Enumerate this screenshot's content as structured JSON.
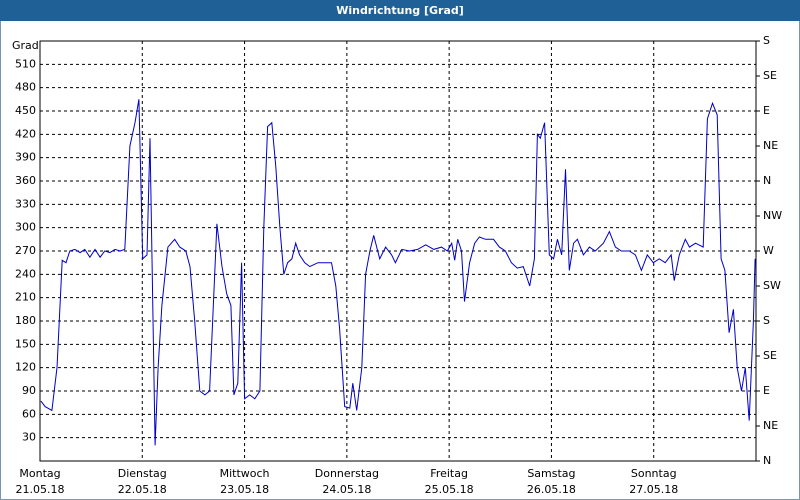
{
  "chart_data": {
    "type": "line",
    "title": "Windrichtung [Grad]",
    "y_label": "Grad",
    "x": [
      0.2,
      1.2,
      2.8,
      4.0,
      5.2,
      6.1,
      7.0,
      8.2,
      9.4,
      10.5,
      11.7,
      12.9,
      14.1,
      15.2,
      16.4,
      17.6,
      18.8,
      19.9,
      21.1,
      22.3,
      23.2,
      24.1,
      25.1,
      25.8,
      27.0,
      27.7,
      28.6,
      30.0,
      31.6,
      32.8,
      34.2,
      35.2,
      36.3,
      37.5,
      38.7,
      39.8,
      41.5,
      42.7,
      43.8,
      44.8,
      45.5,
      46.4,
      47.3,
      48.0,
      49.2,
      50.4,
      51.6,
      52.5,
      53.4,
      54.4,
      55.3,
      56.3,
      57.2,
      58.1,
      59.1,
      60.0,
      60.9,
      62.1,
      63.3,
      65.2,
      67.0,
      68.4,
      69.4,
      70.3,
      71.5,
      72.7,
      73.4,
      74.3,
      75.5,
      76.4,
      77.4,
      78.3,
      79.7,
      81.1,
      82.5,
      83.4,
      84.9,
      86.7,
      88.6,
      90.5,
      92.4,
      94.2,
      95.6,
      96.6,
      97.3,
      98.0,
      98.9,
      99.6,
      100.8,
      102.0,
      103.1,
      104.5,
      106.4,
      107.8,
      109.2,
      110.6,
      112.0,
      113.4,
      114.9,
      116.0,
      116.7,
      117.4,
      118.4,
      119.5,
      120.5,
      121.4,
      122.4,
      123.3,
      124.2,
      125.2,
      126.1,
      127.5,
      128.9,
      130.3,
      132.2,
      133.6,
      135.0,
      136.4,
      138.3,
      139.7,
      141.1,
      142.5,
      143.9,
      145.3,
      146.7,
      148.1,
      148.8,
      150.0,
      151.4,
      152.4,
      153.8,
      155.6,
      156.6,
      157.8,
      158.9,
      159.8,
      160.7,
      161.7,
      162.7,
      163.6,
      164.6,
      165.5,
      166.4,
      167.4,
      167.8
    ],
    "series": [
      {
        "name": "Windrichtung",
        "color": "#0000c8",
        "values": [
          77,
          70,
          65,
          120,
          258,
          255,
          270,
          272,
          268,
          272,
          262,
          272,
          262,
          270,
          268,
          272,
          270,
          272,
          405,
          435,
          465,
          260,
          265,
          415,
          20,
          120,
          200,
          275,
          285,
          275,
          270,
          250,
          180,
          90,
          85,
          90,
          305,
          250,
          215,
          200,
          85,
          100,
          255,
          80,
          85,
          80,
          90,
          300,
          430,
          435,
          380,
          300,
          240,
          255,
          260,
          280,
          265,
          255,
          250,
          255,
          255,
          255,
          225,
          170,
          70,
          68,
          100,
          65,
          120,
          240,
          270,
          290,
          260,
          275,
          265,
          255,
          272,
          270,
          272,
          278,
          272,
          275,
          270,
          280,
          258,
          285,
          270,
          205,
          255,
          280,
          288,
          285,
          285,
          275,
          270,
          255,
          248,
          250,
          225,
          260,
          420,
          415,
          435,
          265,
          260,
          285,
          265,
          375,
          245,
          280,
          285,
          265,
          275,
          270,
          280,
          295,
          275,
          270,
          270,
          265,
          245,
          265,
          255,
          260,
          255,
          265,
          232,
          265,
          285,
          275,
          280,
          275,
          440,
          460,
          445,
          260,
          245,
          165,
          195,
          120,
          90,
          120,
          52,
          180,
          260
        ]
      }
    ],
    "xlim": [
      0,
      168
    ],
    "xticks": [
      {
        "value": 0,
        "label": "Montag"
      },
      {
        "value": 24,
        "label": "Dienstag"
      },
      {
        "value": 48,
        "label": "Mittwoch"
      },
      {
        "value": 72,
        "label": "Donnerstag"
      },
      {
        "value": 96,
        "label": "Freitag"
      },
      {
        "value": 120,
        "label": "Samstag"
      },
      {
        "value": 144,
        "label": "Sonntag"
      }
    ],
    "xtick_dates": [
      "21.05.18",
      "22.05.18",
      "23.05.18",
      "24.05.18",
      "25.05.18",
      "26.05.18",
      "27.05.18"
    ],
    "ylim": [
      0,
      540
    ],
    "yticks": [
      30,
      60,
      90,
      120,
      150,
      180,
      210,
      240,
      270,
      300,
      330,
      360,
      390,
      420,
      450,
      480,
      510
    ],
    "y2lim": [
      0,
      540
    ],
    "y2ticks": [
      {
        "value": 0,
        "label": "N"
      },
      {
        "value": 45,
        "label": "NE"
      },
      {
        "value": 90,
        "label": "E"
      },
      {
        "value": 135,
        "label": "SE"
      },
      {
        "value": 180,
        "label": "S"
      },
      {
        "value": 225,
        "label": "SW"
      },
      {
        "value": 270,
        "label": "W"
      },
      {
        "value": 315,
        "label": "NW"
      },
      {
        "value": 360,
        "label": "N"
      },
      {
        "value": 405,
        "label": "NE"
      },
      {
        "value": 450,
        "label": "E"
      },
      {
        "value": 495,
        "label": "SE"
      },
      {
        "value": 540,
        "label": "S"
      }
    ],
    "grid": true
  }
}
